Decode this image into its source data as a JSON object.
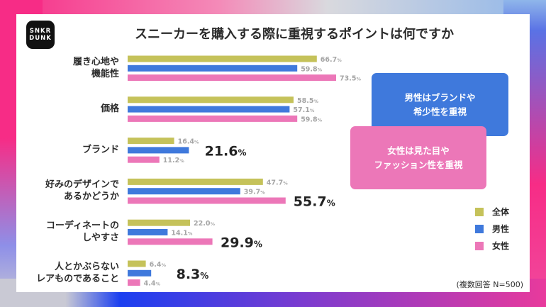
{
  "logo": {
    "line1": "SNKR",
    "line2": "DUNK"
  },
  "chart_data": {
    "type": "bar",
    "orientation": "horizontal",
    "title": "スニーカーを購入する際に重視するポイントは何ですか",
    "categories": [
      "履き心地や\n機能性",
      "価格",
      "ブランド",
      "好みのデザインで\nあるかどうか",
      "コーディネートの\nしやすさ",
      "人とかぶらない\nレアものであること"
    ],
    "series": [
      {
        "name": "全体",
        "color": "#c5c25a",
        "values": [
          66.7,
          58.5,
          16.4,
          47.7,
          22.0,
          6.4
        ],
        "highlight": [
          false,
          false,
          false,
          false,
          false,
          false
        ]
      },
      {
        "name": "男性",
        "color": "#3f79dc",
        "values": [
          59.8,
          57.1,
          21.6,
          39.7,
          14.1,
          8.3
        ],
        "highlight": [
          false,
          false,
          true,
          false,
          false,
          true
        ]
      },
      {
        "name": "女性",
        "color": "#ec77b8",
        "values": [
          73.5,
          59.8,
          11.2,
          55.7,
          29.9,
          4.4
        ],
        "highlight": [
          false,
          false,
          false,
          true,
          true,
          false
        ]
      }
    ],
    "unit": "%",
    "legend": "right",
    "grid": false,
    "xlim": [
      0,
      80
    ]
  },
  "callouts": {
    "male": "男性はブランドや\n希少性を重視",
    "female": "女性は見た目や\nファッション性を重視"
  },
  "note": "(複数回答 N=500)"
}
